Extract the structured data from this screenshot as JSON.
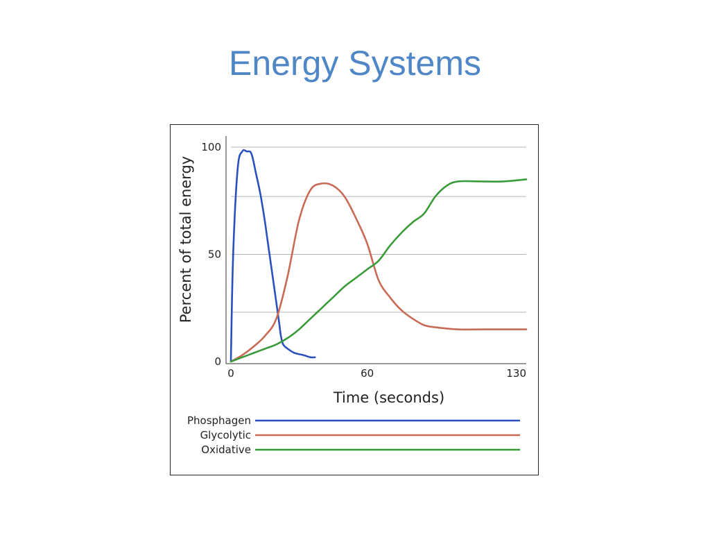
{
  "slide": {
    "title": "Energy Systems"
  },
  "chart_data": {
    "type": "line",
    "title": "",
    "xlabel": "Time (seconds)",
    "ylabel": "Percent of total energy",
    "xlim": [
      0,
      130
    ],
    "ylim": [
      0,
      100
    ],
    "x_ticks": [
      0,
      60,
      130
    ],
    "y_ticks": [
      0,
      50,
      100
    ],
    "gridlines_y": [
      23,
      50,
      77,
      100
    ],
    "grid": true,
    "legend_position": "bottom",
    "colors": {
      "Phosphagen": "#2a4fbf",
      "Glycolytic": "#c86a55",
      "Oxidative": "#3a9a3a"
    },
    "series": [
      {
        "name": "Phosphagen",
        "x": [
          0,
          1,
          3,
          5,
          7,
          9,
          11,
          13,
          15,
          17,
          19,
          21,
          22,
          23,
          25,
          28,
          32,
          35,
          37
        ],
        "y": [
          0,
          50,
          90,
          98,
          98,
          97,
          88,
          78,
          65,
          50,
          35,
          20,
          12,
          8,
          6,
          4,
          3,
          2,
          2
        ]
      },
      {
        "name": "Glycolytic",
        "x": [
          0,
          5,
          10,
          15,
          20,
          25,
          30,
          35,
          40,
          45,
          50,
          55,
          60,
          65,
          70,
          75,
          80,
          85,
          90,
          100,
          110,
          120,
          130
        ],
        "y": [
          0,
          3,
          7,
          12,
          20,
          40,
          66,
          80,
          83,
          82,
          77,
          67,
          55,
          38,
          30,
          24,
          20,
          17,
          16,
          15,
          15,
          15,
          15
        ]
      },
      {
        "name": "Oxidative",
        "x": [
          0,
          5,
          10,
          15,
          20,
          25,
          30,
          35,
          40,
          45,
          50,
          55,
          60,
          65,
          70,
          75,
          80,
          85,
          90,
          95,
          100,
          110,
          120,
          130
        ],
        "y": [
          0,
          2,
          4,
          6,
          8,
          11,
          15,
          20,
          25,
          30,
          35,
          39,
          43,
          47,
          54,
          60,
          65,
          69,
          77,
          82,
          84,
          84,
          84,
          85
        ]
      }
    ]
  }
}
